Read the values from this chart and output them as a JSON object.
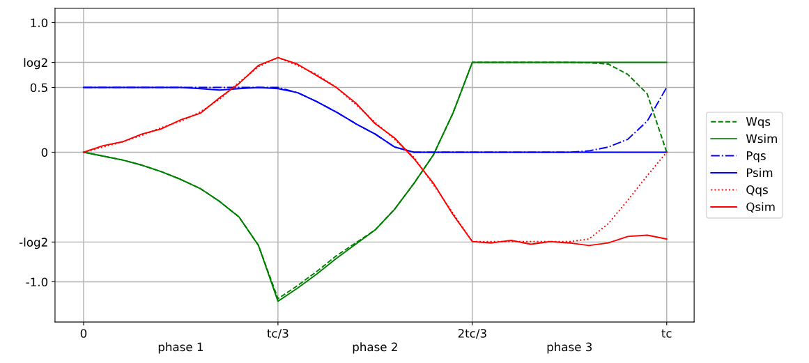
{
  "chart_data": {
    "type": "line",
    "ylim": [
      -1.31,
      1.11
    ],
    "categories": [
      "0",
      null,
      null,
      null,
      null,
      null,
      null,
      null,
      null,
      null,
      "tc/3",
      null,
      null,
      null,
      null,
      null,
      null,
      null,
      null,
      null,
      "2tc/3",
      null,
      null,
      null,
      null,
      null,
      null,
      null,
      null,
      null,
      "tc"
    ],
    "yticks": [
      {
        "value": -1.0,
        "label": "-1.0"
      },
      {
        "value": -0.693,
        "label": "-log2"
      },
      0,
      {
        "value": 0.5,
        "label": "0.5"
      },
      {
        "value": 0.693,
        "label": "log2"
      },
      {
        "value": 1.0,
        "label": "1.0"
      }
    ],
    "grid": true,
    "legend": "right",
    "marker": "none",
    "annotations": [
      "phase 1",
      "phase 2",
      "phase 3"
    ],
    "series": [
      {
        "name": "Wqs",
        "color": "#008000",
        "line_style": "dashed",
        "values": [
          0,
          -0.03,
          -0.06,
          -0.1,
          -0.15,
          -0.21,
          -0.28,
          -0.38,
          -0.5,
          -0.72,
          -1.13,
          -1.03,
          -0.92,
          -0.8,
          -0.7,
          -0.6,
          -0.44,
          -0.24,
          -0.02,
          0.3,
          0.693,
          0.693,
          0.693,
          0.693,
          0.693,
          0.693,
          0.69,
          0.68,
          0.6,
          0.45,
          0
        ]
      },
      {
        "name": "Wsim",
        "color": "#008000",
        "line_style": "solid",
        "values": [
          0,
          -0.03,
          -0.06,
          -0.1,
          -0.15,
          -0.21,
          -0.28,
          -0.38,
          -0.5,
          -0.72,
          -1.15,
          -1.05,
          -0.94,
          -0.82,
          -0.71,
          -0.6,
          -0.44,
          -0.24,
          -0.02,
          0.3,
          0.693,
          0.693,
          0.693,
          0.693,
          0.693,
          0.693,
          0.693,
          0.693,
          0.693,
          0.693,
          0.693
        ]
      },
      {
        "name": "Pqs",
        "color": "#0000ff",
        "line_style": "dashdot",
        "values": [
          0.5,
          0.5,
          0.5,
          0.5,
          0.5,
          0.5,
          0.5,
          0.5,
          0.5,
          0.5,
          0.5,
          0.46,
          0.39,
          0.31,
          0.22,
          0.14,
          0.04,
          0,
          0,
          0,
          0,
          0,
          0,
          0,
          0,
          0,
          0.01,
          0.04,
          0.1,
          0.24,
          0.5
        ]
      },
      {
        "name": "Psim",
        "color": "#0000ff",
        "line_style": "solid",
        "values": [
          0.5,
          0.5,
          0.5,
          0.5,
          0.5,
          0.5,
          0.49,
          0.48,
          0.49,
          0.5,
          0.49,
          0.46,
          0.39,
          0.31,
          0.22,
          0.14,
          0.04,
          0,
          0,
          0,
          0,
          0,
          0,
          0,
          0,
          0,
          0,
          0,
          0,
          0,
          0
        ]
      },
      {
        "name": "Qqs",
        "color": "#ff0000",
        "line_style": "dotted",
        "values": [
          0,
          0.04,
          0.08,
          0.13,
          0.19,
          0.24,
          0.31,
          0.41,
          0.54,
          0.66,
          0.73,
          0.67,
          0.6,
          0.5,
          0.37,
          0.23,
          0.1,
          -0.04,
          -0.25,
          -0.47,
          -0.69,
          -0.69,
          -0.69,
          -0.69,
          -0.69,
          -0.69,
          -0.67,
          -0.55,
          -0.37,
          -0.18,
          0
        ]
      },
      {
        "name": "Qsim",
        "color": "#ff0000",
        "line_style": "solid",
        "values": [
          0,
          0.05,
          0.08,
          0.14,
          0.18,
          0.25,
          0.3,
          0.42,
          0.53,
          0.67,
          0.73,
          0.68,
          0.59,
          0.5,
          0.38,
          0.22,
          0.11,
          -0.05,
          -0.24,
          -0.48,
          -0.69,
          -0.7,
          -0.68,
          -0.71,
          -0.69,
          -0.7,
          -0.72,
          -0.7,
          -0.65,
          -0.64,
          -0.67
        ]
      }
    ]
  }
}
